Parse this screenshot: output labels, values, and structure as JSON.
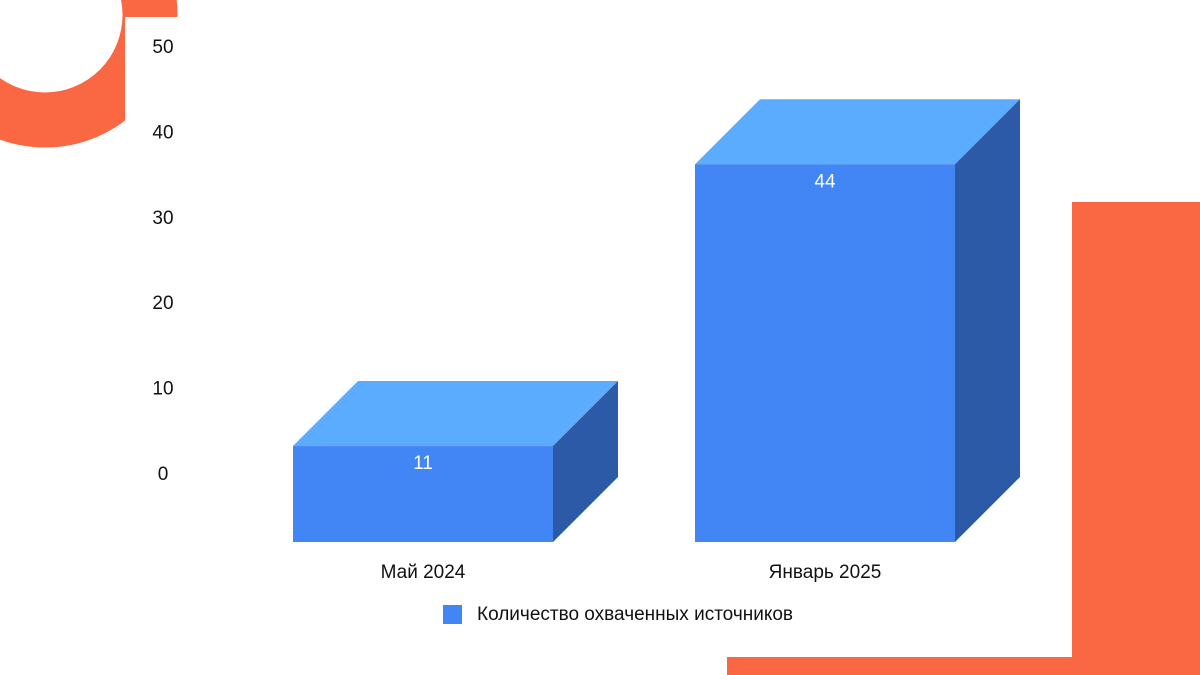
{
  "chart_data": {
    "type": "bar3d",
    "categories": [
      "Май 2024",
      "Январь 2025"
    ],
    "series": [
      {
        "name": "Количество охваченных источников",
        "color": "#4285f4",
        "values": [
          11,
          44
        ]
      }
    ],
    "ylim": [
      0,
      50
    ],
    "yticks": [
      0,
      10,
      20,
      30,
      40,
      50
    ],
    "grid": false,
    "legend": "bottom"
  }
}
